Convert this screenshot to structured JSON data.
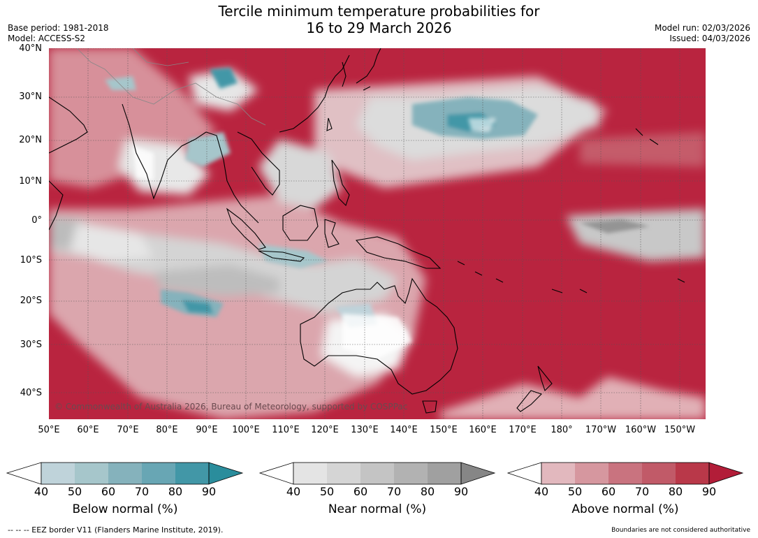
{
  "header": {
    "title_line1": "Tercile minimum temperature probabilities for",
    "title_line2": "16 to 29 March 2026",
    "base_period": "Base period: 1981-2018",
    "model": "Model: ACCESS-S2",
    "model_run": "Model run: 02/03/2026",
    "issued": "Issued: 04/03/2026"
  },
  "map": {
    "lat_labels": [
      "40°N",
      "30°N",
      "20°N",
      "10°N",
      "0°",
      "10°S",
      "20°S",
      "30°S",
      "40°S"
    ],
    "lon_labels": [
      "50°E",
      "60°E",
      "70°E",
      "80°E",
      "90°E",
      "100°E",
      "110°E",
      "120°E",
      "130°E",
      "140°E",
      "150°E",
      "160°E",
      "170°E",
      "180°",
      "170°W",
      "160°W",
      "150°W"
    ],
    "copyright": "© Commonwealth of Australia 2026, Bureau of Meteorology, supported by COSPPac"
  },
  "colorbars": [
    {
      "label": "Below normal (%)",
      "ticks": [
        "40",
        "50",
        "60",
        "70",
        "80",
        "90"
      ],
      "colors": [
        "#bfd3da",
        "#a6c6cb",
        "#85b2bc",
        "#68a6b4",
        "#4297a7",
        "#2a8d9c"
      ]
    },
    {
      "label": "Near normal (%)",
      "ticks": [
        "40",
        "50",
        "60",
        "70",
        "80",
        "90"
      ],
      "colors": [
        "#e4e4e4",
        "#d5d5d5",
        "#c4c4c4",
        "#b2b2b2",
        "#a0a0a0",
        "#868686"
      ]
    },
    {
      "label": "Above normal (%)",
      "ticks": [
        "40",
        "50",
        "60",
        "70",
        "80",
        "90"
      ],
      "colors": [
        "#e2b8be",
        "#d6979f",
        "#c9737f",
        "#c15a68",
        "#b93849",
        "#b21d38"
      ]
    }
  ],
  "footer": {
    "eez_note": "--  --  -- EEZ border V11 (Flanders Marine Institute, 2019).",
    "boundary_note": "Boundaries are not considered authoritative"
  }
}
